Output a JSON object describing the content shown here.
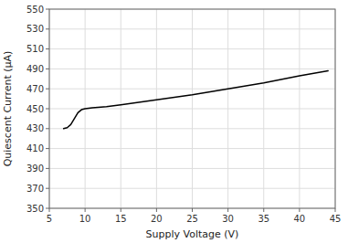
{
  "chart_data": {
    "type": "line",
    "xlabel": "Supply Voltage (V)",
    "ylabel": "Quiescent Current (μA)",
    "x": [
      7.0,
      7.5,
      8.0,
      8.5,
      9.0,
      9.5,
      10.0,
      11.0,
      13.0,
      15.0,
      20.0,
      25.0,
      30.0,
      35.0,
      40.0,
      44.0
    ],
    "values": [
      430,
      431,
      434,
      440,
      446,
      449,
      450,
      451,
      452,
      454,
      459,
      464,
      470,
      476,
      483,
      488
    ],
    "color": "#000000",
    "xlim": [
      5,
      45
    ],
    "ylim": [
      350,
      550
    ],
    "xticks": [
      5,
      10,
      15,
      20,
      25,
      30,
      35,
      40,
      45
    ],
    "yticks": [
      350,
      370,
      390,
      410,
      430,
      450,
      470,
      490,
      510,
      530,
      550
    ],
    "grid": true
  }
}
